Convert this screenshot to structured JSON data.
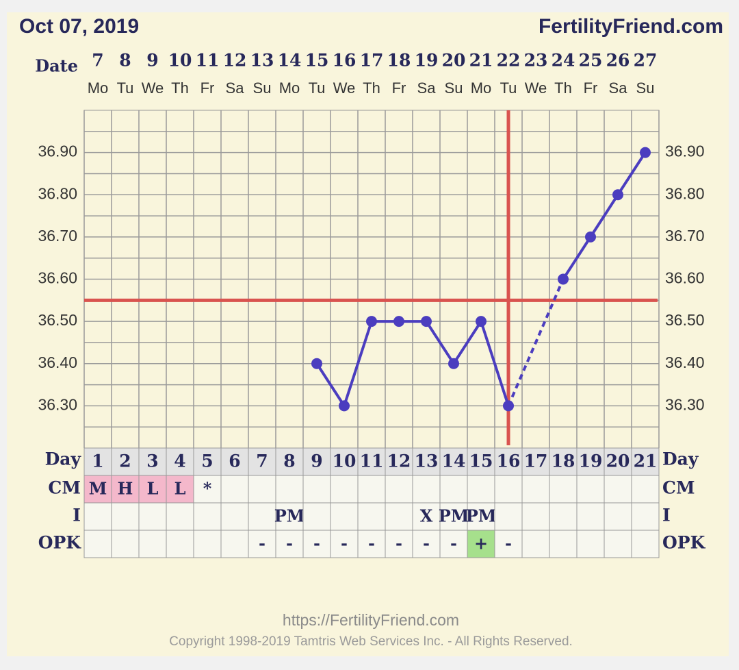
{
  "header": {
    "date": "Oct 07, 2019",
    "site": "FertilityFriend.com"
  },
  "chart_data": {
    "type": "line",
    "date_label": "Date",
    "dates": [
      7,
      8,
      9,
      10,
      11,
      12,
      13,
      14,
      15,
      16,
      17,
      18,
      19,
      20,
      21,
      22,
      23,
      24,
      25,
      26,
      27
    ],
    "weekdays": [
      "Mo",
      "Tu",
      "We",
      "Th",
      "Fr",
      "Sa",
      "Su",
      "Mo",
      "Tu",
      "We",
      "Th",
      "Fr",
      "Sa",
      "Su",
      "Mo",
      "Tu",
      "We",
      "Th",
      "Fr",
      "Sa",
      "Su"
    ],
    "x": [
      1,
      2,
      3,
      4,
      5,
      6,
      7,
      8,
      9,
      10,
      11,
      12,
      13,
      14,
      15,
      16,
      17,
      18,
      19,
      20,
      21
    ],
    "xlim": [
      0.5,
      21.5
    ],
    "series": [
      {
        "color": "#4b3dbf",
        "values": [
          null,
          null,
          null,
          null,
          null,
          null,
          null,
          null,
          36.4,
          36.3,
          36.5,
          36.5,
          36.5,
          36.4,
          36.5,
          36.3,
          null,
          36.6,
          36.7,
          36.8,
          36.9
        ]
      }
    ],
    "ylim": [
      36.2,
      37.0
    ],
    "yticks": [
      {
        "value": 36.3,
        "label": "36.30"
      },
      {
        "value": 36.4,
        "label": "36.40"
      },
      {
        "value": 36.5,
        "label": "36.50"
      },
      {
        "value": 36.6,
        "label": "36.60"
      },
      {
        "value": 36.7,
        "label": "36.70"
      },
      {
        "value": 36.8,
        "label": "36.80"
      },
      {
        "value": 36.9,
        "label": "36.90"
      }
    ],
    "ygrid": [
      36.25,
      36.3,
      36.35,
      36.4,
      36.45,
      36.5,
      36.55,
      36.6,
      36.65,
      36.7,
      36.75,
      36.8,
      36.85,
      36.9,
      36.95
    ],
    "coverline": 36.55,
    "ovulation_day": 16,
    "marker_color": "#d9534f",
    "day_label": "Day",
    "rows": [
      {
        "label": "CM",
        "cells": [
          "M",
          "H",
          "L",
          "L",
          "*",
          null,
          null,
          null,
          null,
          null,
          null,
          null,
          null,
          null,
          null,
          null,
          null,
          null,
          null,
          null,
          null
        ],
        "colors": [
          "#f4b8cb",
          "#f4b8cb",
          "#f4b8cb",
          "#f4b8cb",
          null,
          null,
          null,
          null,
          null,
          null,
          null,
          null,
          null,
          null,
          null,
          null,
          null,
          null,
          null,
          null,
          null
        ]
      },
      {
        "label": "I",
        "cells": [
          null,
          null,
          null,
          null,
          null,
          null,
          null,
          "PM",
          null,
          null,
          null,
          null,
          "X",
          "PM",
          "PM",
          null,
          null,
          null,
          null,
          null,
          null
        ],
        "colors": [
          null,
          null,
          null,
          null,
          null,
          null,
          null,
          null,
          null,
          null,
          null,
          null,
          null,
          null,
          null,
          null,
          null,
          null,
          null,
          null,
          null
        ]
      },
      {
        "label": "OPK",
        "cells": [
          null,
          null,
          null,
          null,
          null,
          null,
          "-",
          "-",
          "-",
          "-",
          "-",
          "-",
          "-",
          "-",
          "+",
          "-",
          null,
          null,
          null,
          null,
          null
        ],
        "colors": [
          null,
          null,
          null,
          null,
          null,
          null,
          null,
          null,
          null,
          null,
          null,
          null,
          null,
          null,
          "#a6e08c",
          null,
          null,
          null,
          null,
          null,
          null
        ]
      }
    ]
  },
  "footer": {
    "url": "https://FertilityFriend.com",
    "copyright": "Copyright 1998-2019 Tamtris Web Services Inc. - All Rights Reserved."
  }
}
